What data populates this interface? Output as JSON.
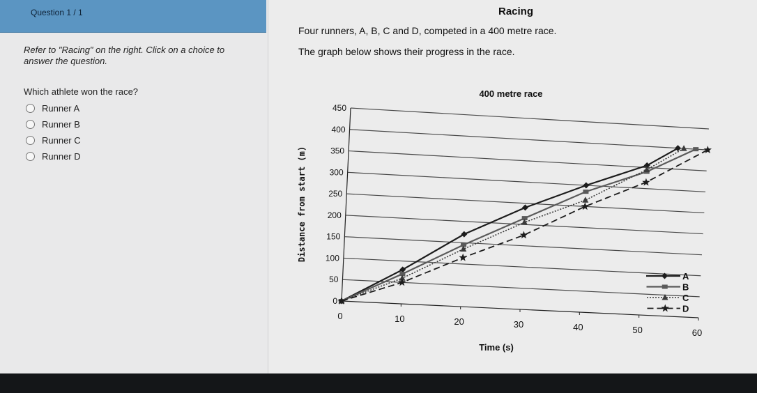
{
  "question": {
    "number_label": "Question 1 / 1",
    "instructions": "Refer to \"Racing\" on the right. Click on a choice to answer the question.",
    "prompt": "Which athlete won the race?",
    "options": [
      "Runner A",
      "Runner B",
      "Runner C",
      "Runner D"
    ]
  },
  "passage": {
    "title": "Racing",
    "line1": "Four runners, A, B, C and D, competed in a 400 metre race.",
    "line2": "The graph below shows their progress in the race."
  },
  "chart_data": {
    "type": "line",
    "title": "400 metre race",
    "xlabel": "Time (s)",
    "ylabel": "Distance from start (m)",
    "xlim": [
      0,
      60
    ],
    "ylim": [
      0,
      450
    ],
    "x_ticks": [
      "0",
      "10",
      "20",
      "30",
      "40",
      "50",
      "60"
    ],
    "y_ticks": [
      "0",
      "50",
      "100",
      "150",
      "200",
      "250",
      "300",
      "350",
      "400",
      "450"
    ],
    "grid": true,
    "legend_position": "bottom-right",
    "series": [
      {
        "name": "A",
        "style": "solid",
        "marker": "diamond",
        "color": "#1c1c1c",
        "x": [
          0,
          10,
          20,
          30,
          40,
          50,
          55
        ],
        "y": [
          0,
          80,
          170,
          240,
          300,
          355,
          400
        ]
      },
      {
        "name": "B",
        "style": "solid",
        "marker": "square",
        "color": "#5a5a5a",
        "x": [
          0,
          10,
          20,
          30,
          40,
          50,
          58
        ],
        "y": [
          0,
          70,
          145,
          215,
          285,
          340,
          400
        ]
      },
      {
        "name": "C",
        "style": "dotted",
        "marker": "triangle",
        "color": "#3a3a3a",
        "x": [
          0,
          10,
          20,
          30,
          40,
          50,
          56
        ],
        "y": [
          0,
          60,
          135,
          205,
          265,
          345,
          400
        ]
      },
      {
        "name": "D",
        "style": "dashed",
        "marker": "star",
        "color": "#1c1c1c",
        "x": [
          0,
          10,
          20,
          30,
          40,
          50,
          60
        ],
        "y": [
          0,
          50,
          115,
          175,
          250,
          315,
          400
        ]
      }
    ]
  }
}
